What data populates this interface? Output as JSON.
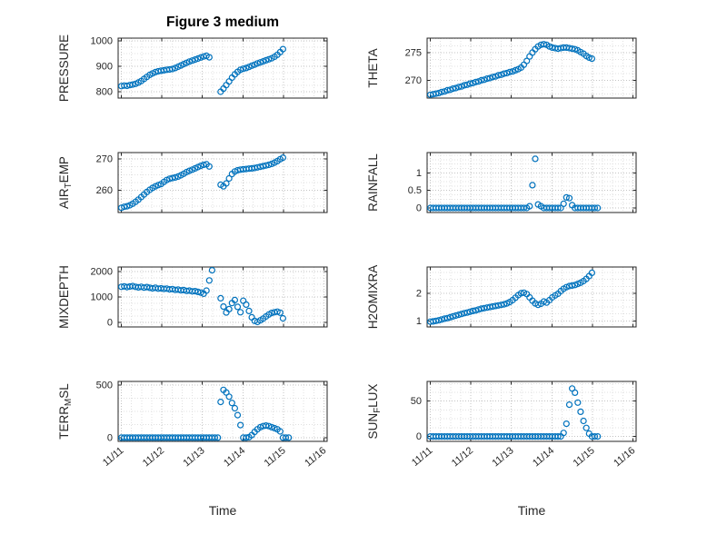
{
  "title": "Figure 3 medium",
  "xlabel": "Time",
  "marker_color": "#0072BD",
  "axes": {
    "xlim": [
      -0.08,
      5.08
    ],
    "xticks": [
      0,
      1,
      2,
      3,
      4,
      5
    ],
    "xtick_labels": [
      "11/11",
      "11/12",
      "11/13",
      "11/14",
      "11/15",
      "11/16"
    ]
  },
  "chart_data": [
    {
      "type": "scatter",
      "name": "PRESSURE",
      "ylabel": "PRESSURE",
      "row": 0,
      "col": 0,
      "ylim": [
        775,
        1010
      ],
      "yticks": [
        800,
        900,
        1000
      ],
      "x": [
        0,
        0.07,
        0.14,
        0.21,
        0.28,
        0.35,
        0.42,
        0.49,
        0.56,
        0.63,
        0.7,
        0.77,
        0.84,
        0.91,
        0.98,
        1.05,
        1.12,
        1.19,
        1.26,
        1.33,
        1.4,
        1.47,
        1.54,
        1.61,
        1.68,
        1.75,
        1.82,
        1.89,
        1.96,
        2.03,
        2.1,
        2.17,
        2.45,
        2.52,
        2.59,
        2.66,
        2.73,
        2.8,
        2.87,
        2.94,
        3.01,
        3.08,
        3.15,
        3.22,
        3.29,
        3.36,
        3.43,
        3.5,
        3.57,
        3.64,
        3.71,
        3.78,
        3.85,
        3.92,
        3.99
      ],
      "y": [
        822,
        824,
        823,
        826,
        828,
        831,
        836,
        842,
        850,
        858,
        866,
        872,
        877,
        880,
        882,
        884,
        886,
        887,
        889,
        893,
        898,
        903,
        908,
        913,
        918,
        922,
        926,
        930,
        934,
        938,
        941,
        935,
        800,
        812,
        826,
        840,
        855,
        868,
        878,
        886,
        890,
        893,
        897,
        902,
        906,
        911,
        915,
        919,
        923,
        927,
        931,
        937,
        945,
        955,
        967
      ]
    },
    {
      "type": "scatter",
      "name": "THETA",
      "ylabel": "THETA",
      "row": 0,
      "col": 1,
      "ylim": [
        266.8,
        277.6
      ],
      "yticks": [
        270,
        275
      ],
      "x": [
        0,
        0.07,
        0.14,
        0.21,
        0.28,
        0.35,
        0.42,
        0.49,
        0.56,
        0.63,
        0.7,
        0.77,
        0.84,
        0.91,
        0.98,
        1.05,
        1.12,
        1.19,
        1.26,
        1.33,
        1.4,
        1.47,
        1.54,
        1.61,
        1.68,
        1.75,
        1.82,
        1.89,
        1.96,
        2.03,
        2.1,
        2.17,
        2.24,
        2.31,
        2.38,
        2.45,
        2.52,
        2.59,
        2.66,
        2.73,
        2.8,
        2.87,
        2.94,
        3.01,
        3.08,
        3.15,
        3.22,
        3.29,
        3.36,
        3.43,
        3.5,
        3.57,
        3.64,
        3.71,
        3.78,
        3.85,
        3.92,
        3.99
      ],
      "y": [
        267.4,
        267.5,
        267.6,
        267.7,
        267.9,
        268,
        268.2,
        268.3,
        268.5,
        268.6,
        268.8,
        268.9,
        269.1,
        269.2,
        269.4,
        269.5,
        269.7,
        269.8,
        270,
        270.1,
        270.3,
        270.4,
        270.6,
        270.7,
        270.9,
        271,
        271.2,
        271.3,
        271.5,
        271.6,
        271.8,
        272,
        272.3,
        272.8,
        273.5,
        274.3,
        275,
        275.6,
        276.1,
        276.4,
        276.5,
        276.4,
        276.1,
        275.9,
        275.8,
        275.7,
        275.8,
        275.9,
        275.9,
        275.8,
        275.7,
        275.6,
        275.4,
        275.1,
        274.8,
        274.4,
        274.1,
        273.9
      ]
    },
    {
      "type": "scatter",
      "name": "AIR_TEMP",
      "ylabel": "AIR_TEMP",
      "row": 1,
      "col": 0,
      "ylim": [
        253,
        272
      ],
      "yticks": [
        260,
        270
      ],
      "x": [
        0,
        0.07,
        0.14,
        0.21,
        0.28,
        0.35,
        0.42,
        0.49,
        0.56,
        0.63,
        0.7,
        0.77,
        0.84,
        0.91,
        0.98,
        1.05,
        1.12,
        1.19,
        1.26,
        1.33,
        1.4,
        1.47,
        1.54,
        1.61,
        1.68,
        1.75,
        1.82,
        1.89,
        1.96,
        2.03,
        2.1,
        2.17,
        2.45,
        2.52,
        2.59,
        2.66,
        2.73,
        2.8,
        2.87,
        2.94,
        3.01,
        3.08,
        3.15,
        3.22,
        3.29,
        3.36,
        3.43,
        3.5,
        3.57,
        3.64,
        3.71,
        3.78,
        3.85,
        3.92,
        3.99
      ],
      "y": [
        254.5,
        254.8,
        255,
        255.3,
        255.8,
        256.4,
        257.1,
        257.9,
        258.7,
        259.5,
        260.2,
        260.8,
        261.3,
        261.7,
        262,
        262.7,
        263.3,
        263.7,
        263.9,
        264.1,
        264.4,
        264.8,
        265.3,
        265.8,
        266.2,
        266.6,
        267,
        267.4,
        267.8,
        268.1,
        268.3,
        267.6,
        261.8,
        261.3,
        262.2,
        263.8,
        265.2,
        266,
        266.4,
        266.6,
        266.7,
        266.8,
        266.9,
        267,
        267.1,
        267.3,
        267.5,
        267.7,
        267.9,
        268.1,
        268.4,
        268.8,
        269.3,
        269.9,
        270.4
      ]
    },
    {
      "type": "scatter",
      "name": "RAINFALL",
      "ylabel": "RAINFALL",
      "row": 1,
      "col": 1,
      "ylim": [
        -0.13,
        1.58
      ],
      "yticks": [
        0,
        0.5,
        1
      ],
      "x": [
        0,
        0.07,
        0.14,
        0.21,
        0.28,
        0.35,
        0.42,
        0.49,
        0.56,
        0.63,
        0.7,
        0.77,
        0.84,
        0.91,
        0.98,
        1.05,
        1.12,
        1.19,
        1.26,
        1.33,
        1.4,
        1.47,
        1.54,
        1.61,
        1.68,
        1.75,
        1.82,
        1.89,
        1.96,
        2.03,
        2.1,
        2.17,
        2.24,
        2.31,
        2.38,
        2.45,
        2.52,
        2.59,
        2.66,
        2.73,
        2.8,
        2.87,
        2.94,
        3.01,
        3.08,
        3.15,
        3.22,
        3.29,
        3.36,
        3.43,
        3.5,
        3.57,
        3.64,
        3.71,
        3.78,
        3.85,
        3.92,
        3.99,
        4.06,
        4.13
      ],
      "y": [
        0,
        0,
        0,
        0,
        0,
        0,
        0,
        0,
        0,
        0,
        0,
        0,
        0,
        0,
        0,
        0,
        0,
        0,
        0,
        0,
        0,
        0,
        0,
        0,
        0,
        0,
        0,
        0,
        0,
        0,
        0,
        0,
        0,
        0,
        0,
        0.05,
        0.65,
        1.4,
        0.1,
        0.05,
        0,
        0,
        0,
        0,
        0,
        0,
        0,
        0.12,
        0.3,
        0.28,
        0.08,
        0,
        0,
        0,
        0,
        0,
        0,
        0,
        0,
        0
      ]
    },
    {
      "type": "scatter",
      "name": "MIXDEPTH",
      "ylabel": "MIXDEPTH",
      "row": 2,
      "col": 0,
      "ylim": [
        -180,
        2180
      ],
      "yticks": [
        0,
        1000,
        2000
      ],
      "x": [
        0,
        0.07,
        0.14,
        0.21,
        0.28,
        0.35,
        0.42,
        0.49,
        0.56,
        0.63,
        0.7,
        0.77,
        0.84,
        0.91,
        0.98,
        1.05,
        1.12,
        1.19,
        1.26,
        1.33,
        1.4,
        1.47,
        1.54,
        1.61,
        1.68,
        1.75,
        1.82,
        1.89,
        1.96,
        2.03,
        2.1,
        2.17,
        2.24,
        2.45,
        2.52,
        2.59,
        2.66,
        2.73,
        2.8,
        2.87,
        2.94,
        3.01,
        3.08,
        3.15,
        3.22,
        3.29,
        3.36,
        3.43,
        3.5,
        3.57,
        3.64,
        3.71,
        3.78,
        3.85,
        3.92,
        3.99
      ],
      "y": [
        1400,
        1420,
        1390,
        1410,
        1430,
        1400,
        1380,
        1400,
        1370,
        1390,
        1360,
        1340,
        1360,
        1330,
        1340,
        1320,
        1330,
        1300,
        1310,
        1280,
        1290,
        1260,
        1270,
        1240,
        1250,
        1220,
        1230,
        1200,
        1170,
        1130,
        1250,
        1650,
        2050,
        950,
        620,
        390,
        520,
        760,
        880,
        610,
        400,
        850,
        700,
        450,
        200,
        60,
        15,
        80,
        150,
        230,
        310,
        370,
        400,
        420,
        380,
        160
      ]
    },
    {
      "type": "scatter",
      "name": "H2OMIXRA",
      "ylabel": "H2OMIXRA",
      "row": 2,
      "col": 1,
      "ylim": [
        0.78,
        2.95
      ],
      "yticks": [
        1,
        2
      ],
      "x": [
        0,
        0.07,
        0.14,
        0.21,
        0.28,
        0.35,
        0.42,
        0.49,
        0.56,
        0.63,
        0.7,
        0.77,
        0.84,
        0.91,
        0.98,
        1.05,
        1.12,
        1.19,
        1.26,
        1.33,
        1.4,
        1.47,
        1.54,
        1.61,
        1.68,
        1.75,
        1.82,
        1.89,
        1.96,
        2.03,
        2.1,
        2.17,
        2.24,
        2.31,
        2.38,
        2.45,
        2.52,
        2.59,
        2.66,
        2.73,
        2.8,
        2.87,
        2.94,
        3.01,
        3.08,
        3.15,
        3.22,
        3.29,
        3.36,
        3.43,
        3.5,
        3.57,
        3.64,
        3.71,
        3.78,
        3.85,
        3.92,
        3.99
      ],
      "y": [
        0.97,
        0.98,
        1,
        1.02,
        1.05,
        1.08,
        1.1,
        1.13,
        1.16,
        1.19,
        1.22,
        1.25,
        1.28,
        1.3,
        1.33,
        1.36,
        1.38,
        1.41,
        1.44,
        1.46,
        1.48,
        1.5,
        1.52,
        1.54,
        1.56,
        1.58,
        1.6,
        1.63,
        1.68,
        1.75,
        1.84,
        1.93,
        2,
        2.02,
        1.97,
        1.85,
        1.73,
        1.63,
        1.58,
        1.62,
        1.7,
        1.66,
        1.75,
        1.85,
        1.92,
        1.98,
        2.08,
        2.16,
        2.22,
        2.26,
        2.28,
        2.3,
        2.34,
        2.38,
        2.44,
        2.52,
        2.62,
        2.74
      ]
    },
    {
      "type": "scatter",
      "name": "TERR_MSL",
      "ylabel": "TERR_MSL",
      "row": 3,
      "col": 0,
      "ylim": [
        -35,
        535
      ],
      "yticks": [
        0,
        500
      ],
      "x": [
        0,
        0.07,
        0.14,
        0.21,
        0.28,
        0.35,
        0.42,
        0.49,
        0.56,
        0.63,
        0.7,
        0.77,
        0.84,
        0.91,
        0.98,
        1.05,
        1.12,
        1.19,
        1.26,
        1.33,
        1.4,
        1.47,
        1.54,
        1.61,
        1.68,
        1.75,
        1.82,
        1.89,
        1.96,
        2.03,
        2.1,
        2.17,
        2.24,
        2.31,
        2.38,
        2.45,
        2.52,
        2.59,
        2.66,
        2.73,
        2.8,
        2.87,
        2.94,
        3.01,
        3.08,
        3.15,
        3.22,
        3.29,
        3.36,
        3.43,
        3.5,
        3.57,
        3.64,
        3.71,
        3.78,
        3.85,
        3.92,
        3.99,
        4.06,
        4.13
      ],
      "y": [
        0,
        0,
        0,
        0,
        0,
        0,
        0,
        0,
        0,
        0,
        0,
        0,
        0,
        0,
        0,
        0,
        0,
        0,
        0,
        0,
        0,
        0,
        0,
        0,
        0,
        0,
        0,
        0,
        0,
        0,
        0,
        0,
        0,
        0,
        0,
        340,
        455,
        430,
        390,
        330,
        280,
        215,
        120,
        0,
        0,
        5,
        25,
        55,
        80,
        100,
        110,
        115,
        110,
        100,
        90,
        80,
        60,
        0,
        0,
        0
      ]
    },
    {
      "type": "scatter",
      "name": "SUN_FLUX",
      "ylabel": "SUN_FLUX",
      "row": 3,
      "col": 1,
      "ylim": [
        -7,
        78
      ],
      "yticks": [
        0,
        50
      ],
      "x": [
        0,
        0.07,
        0.14,
        0.21,
        0.28,
        0.35,
        0.42,
        0.49,
        0.56,
        0.63,
        0.7,
        0.77,
        0.84,
        0.91,
        0.98,
        1.05,
        1.12,
        1.19,
        1.26,
        1.33,
        1.4,
        1.47,
        1.54,
        1.61,
        1.68,
        1.75,
        1.82,
        1.89,
        1.96,
        2.03,
        2.1,
        2.17,
        2.24,
        2.31,
        2.38,
        2.45,
        2.52,
        2.59,
        2.66,
        2.73,
        2.8,
        2.87,
        2.94,
        3.01,
        3.08,
        3.15,
        3.22,
        3.29,
        3.36,
        3.43,
        3.5,
        3.57,
        3.64,
        3.71,
        3.78,
        3.85,
        3.92,
        3.99,
        4.06,
        4.13
      ],
      "y": [
        0,
        0,
        0,
        0,
        0,
        0,
        0,
        0,
        0,
        0,
        0,
        0,
        0,
        0,
        0,
        0,
        0,
        0,
        0,
        0,
        0,
        0,
        0,
        0,
        0,
        0,
        0,
        0,
        0,
        0,
        0,
        0,
        0,
        0,
        0,
        0,
        0,
        0,
        0,
        0,
        0,
        0,
        0,
        0,
        0,
        0,
        0,
        5,
        18,
        45,
        68,
        62,
        48,
        35,
        22,
        12,
        4,
        0,
        0,
        0
      ]
    }
  ]
}
